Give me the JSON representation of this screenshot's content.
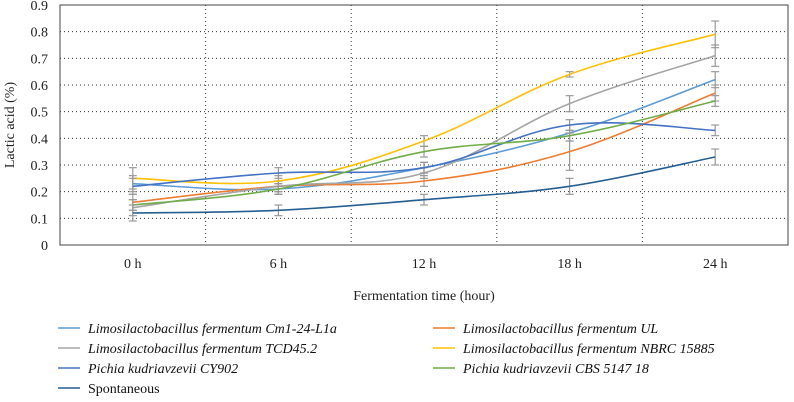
{
  "chart_data": {
    "type": "line",
    "categories": [
      "0 h",
      "6 h",
      "12 h",
      "18 h",
      "24 h"
    ],
    "xlabel": "Fermentation time (hour)",
    "ylabel": "Lactic acid (%)",
    "ylim": [
      0,
      0.9
    ],
    "yticks": [
      "0",
      "0.1",
      "0.2",
      "0.3",
      "0.4",
      "0.5",
      "0.6",
      "0.7",
      "0.8",
      "0.9"
    ],
    "grid": true,
    "legend_position": "bottom",
    "series": [
      {
        "name": "Limosilactobacillus fermentum Cm1-24-L1a",
        "italic": "Limosilactobacillus fermentum Cm",
        "suffix": "1-24-L1a",
        "color": "#5b9bd5",
        "values": [
          0.23,
          0.21,
          0.29,
          0.42,
          0.62
        ],
        "errors": [
          0.03,
          0.02,
          0.02,
          0.03,
          0.03
        ]
      },
      {
        "name": "Limosilactobacillus fermentum UL",
        "italic": "Limosilactobacillus fermentum UL",
        "suffix": "",
        "color": "#ed7d31",
        "values": [
          0.16,
          0.22,
          0.24,
          0.35,
          0.57
        ],
        "errors": [
          0.03,
          0.02,
          0.02,
          0.07,
          0.03
        ]
      },
      {
        "name": "Limosilactobacillus fermentum TCD45.2",
        "italic": "Limosilactobacillus fermentum TCD",
        "suffix": "45.2",
        "color": "#a5a5a5",
        "values": [
          0.14,
          0.22,
          0.27,
          0.53,
          0.71
        ],
        "errors": [
          0.03,
          0.02,
          0.02,
          0.03,
          0.04
        ]
      },
      {
        "name": "Limosilactobacillus fermentum NBRC 15885",
        "italic": "Limosilactobacillus fermentum NBRC",
        "suffix": " 15885",
        "color": "#ffc000",
        "values": [
          0.25,
          0.24,
          0.39,
          0.64,
          0.79
        ],
        "errors": [
          0.04,
          0.02,
          0.02,
          0.01,
          0.05
        ]
      },
      {
        "name": "Pichia kudriavzevii CY902",
        "italic": "Pichia kudriavzevii CY",
        "suffix": "902",
        "color": "#4472c4",
        "values": [
          0.22,
          0.27,
          0.29,
          0.45,
          0.43
        ],
        "errors": [
          0.03,
          0.02,
          0.02,
          0.02,
          0.02
        ]
      },
      {
        "name": "Pichia kudriavzevii CBS 5147 18",
        "italic": "Pichia kudriavzevii CBS",
        "suffix": " 5147 18",
        "color": "#70ad47",
        "values": [
          0.15,
          0.21,
          0.35,
          0.41,
          0.54
        ],
        "errors": [
          0.02,
          0.02,
          0.02,
          0.02,
          0.02
        ]
      },
      {
        "name": "Spontaneous",
        "italic": "",
        "suffix": "Spontaneous",
        "color": "#255e91",
        "values": [
          0.12,
          0.13,
          0.17,
          0.22,
          0.33
        ],
        "errors": [
          0.03,
          0.02,
          0.02,
          0.03,
          0.03
        ]
      }
    ]
  }
}
